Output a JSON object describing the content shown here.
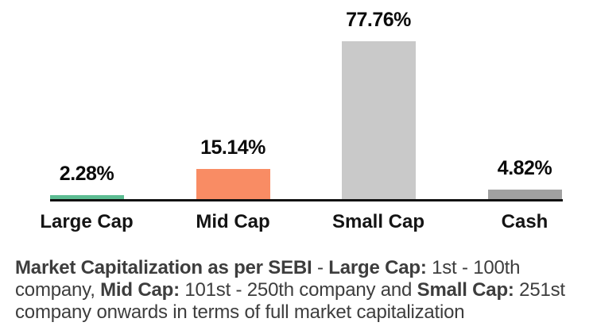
{
  "chart_data": {
    "type": "bar",
    "categories": [
      "Large Cap",
      "Mid Cap",
      "Small Cap",
      "Cash"
    ],
    "values": [
      2.28,
      15.14,
      77.76,
      4.82
    ],
    "value_labels": [
      "2.28%",
      "15.14%",
      "77.76%",
      "4.82%"
    ],
    "bar_colors": [
      "#5cbc92",
      "#f98c64",
      "#c9c9c9",
      "#a1a1a1"
    ],
    "title": "",
    "xlabel": "",
    "ylabel": "",
    "ylim": [
      0,
      77.76
    ],
    "grid": false,
    "legend": "none",
    "axis_line_color": "#111111"
  },
  "footnote": {
    "text_color": "#3d3d3d",
    "lines": [
      {
        "segments": [
          {
            "text": "Market Capitalization as per SEBI",
            "bold": true
          },
          {
            "text": " - ",
            "bold": false
          },
          {
            "text": "Large Cap:",
            "bold": true
          },
          {
            "text": " 1st - 100th",
            "bold": false
          }
        ]
      },
      {
        "segments": [
          {
            "text": "company, ",
            "bold": false
          },
          {
            "text": "Mid Cap:",
            "bold": true
          },
          {
            "text": " 101st - 250th company and ",
            "bold": false
          },
          {
            "text": "Small Cap:",
            "bold": true
          },
          {
            "text": " 251st",
            "bold": false
          }
        ]
      },
      {
        "segments": [
          {
            "text": "company onwards in terms of full market capitalization",
            "bold": false
          }
        ]
      }
    ]
  }
}
